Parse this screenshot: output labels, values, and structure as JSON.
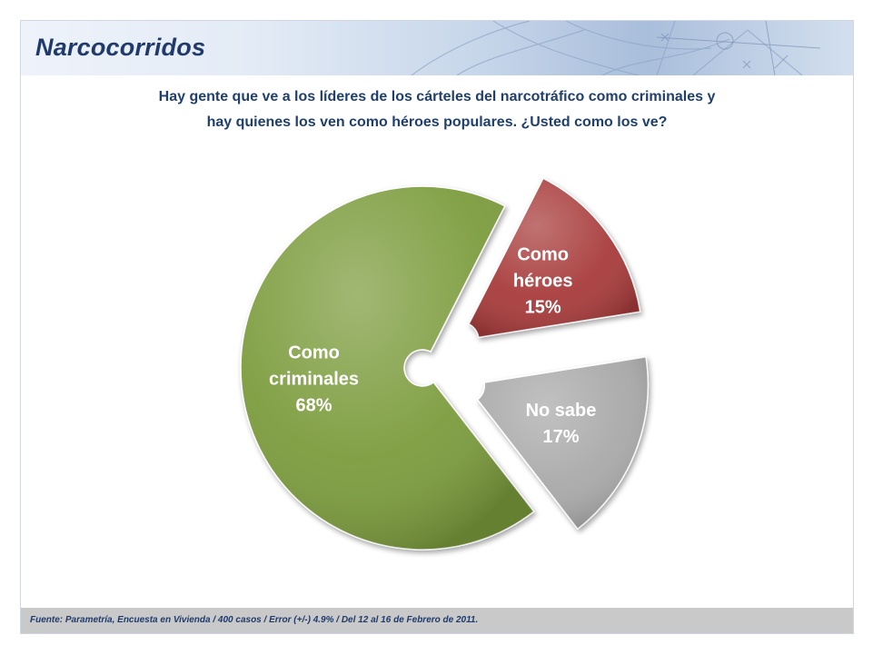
{
  "header": {
    "title": "Narcocorridos"
  },
  "question": {
    "line1": "Hay gente que ve a los líderes de los cárteles del narcotráfico como criminales y",
    "line2": "hay quienes los ven como héroes populares. ¿Usted como los ve?"
  },
  "chart_data": {
    "type": "pie",
    "title": "",
    "slices": [
      {
        "label_lines": [
          "Como",
          "criminales"
        ],
        "value": 68,
        "value_label": "68%",
        "color": "#7c9c3c"
      },
      {
        "label_lines": [
          "Como",
          "héroes"
        ],
        "value": 15,
        "value_label": "15%",
        "color": "#a83b3b"
      },
      {
        "label_lines": [
          "No sabe"
        ],
        "value": 17,
        "value_label": "17%",
        "color": "#a9a9a9"
      }
    ],
    "style": "doughnut-exploded",
    "legend": "none"
  },
  "footer": {
    "source": "Fuente: Parametría, Encuesta en Vivienda / 400 casos / Error (+/-) 4.9% / Del 12 al 16 de Febrero de 2011."
  }
}
